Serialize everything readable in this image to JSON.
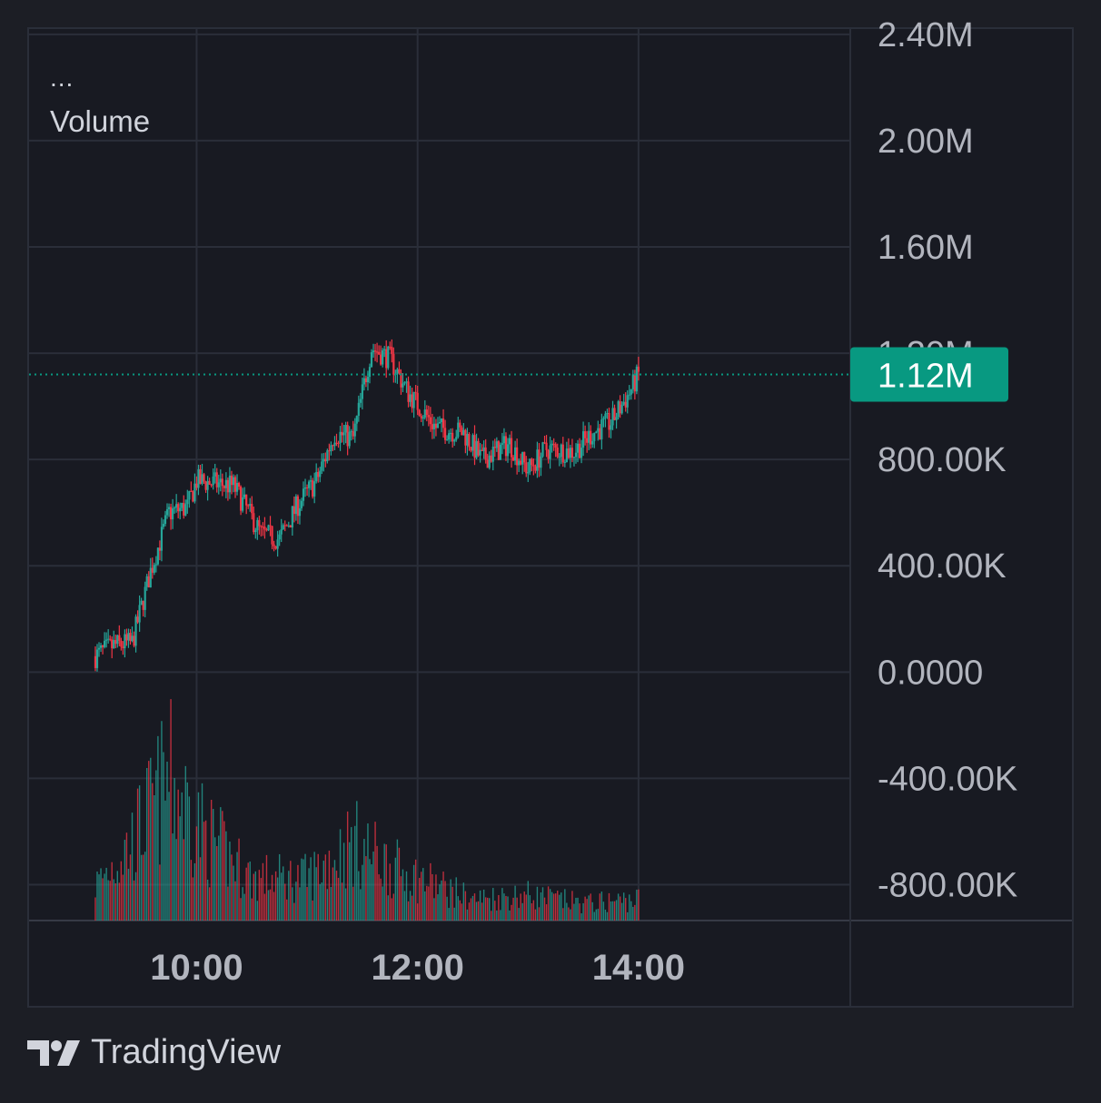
{
  "legend": {
    "dots": "...",
    "title": "Volume"
  },
  "brand": {
    "name": "TradingView",
    "logo_icon": "tradingview-logo-icon"
  },
  "price_label": {
    "text": "1.12M",
    "value": 1120000,
    "color": "#089981"
  },
  "colors": {
    "up": "#26a69a",
    "down": "#f23645",
    "grid": "#2a2e39",
    "axis_text": "#b2b5be",
    "background": "#181a22"
  },
  "chart_data": {
    "type": "candlestick",
    "title": "",
    "series_name": "Volume",
    "x_ticks": [
      "10:00",
      "12:00",
      "14:00"
    ],
    "x_time_range": [
      "08:29",
      "15:55"
    ],
    "y_ticks": [
      "2.40M",
      "2.00M",
      "1.60M",
      "1.20M",
      "800.00K",
      "400.00K",
      "0.0000",
      "-400.00K",
      "-800.00K"
    ],
    "y_tick_values": [
      2400000,
      2000000,
      1600000,
      1200000,
      800000,
      400000,
      0,
      -400000,
      -800000
    ],
    "ylim": [
      -935000,
      2420000
    ],
    "last_value": 1120000,
    "grid": true,
    "anchors": [
      {
        "t": "09:05",
        "v": 60000
      },
      {
        "t": "09:15",
        "v": 100000
      },
      {
        "t": "09:25",
        "v": 110000
      },
      {
        "t": "09:35",
        "v": 380000
      },
      {
        "t": "09:45",
        "v": 600000
      },
      {
        "t": "09:55",
        "v": 620000
      },
      {
        "t": "10:00",
        "v": 720000
      },
      {
        "t": "10:20",
        "v": 700000
      },
      {
        "t": "10:35",
        "v": 520000
      },
      {
        "t": "10:45",
        "v": 500000
      },
      {
        "t": "10:55",
        "v": 630000
      },
      {
        "t": "11:05",
        "v": 720000
      },
      {
        "t": "11:15",
        "v": 900000
      },
      {
        "t": "11:25",
        "v": 880000
      },
      {
        "t": "11:35",
        "v": 1220000
      },
      {
        "t": "11:45",
        "v": 1180000
      },
      {
        "t": "11:55",
        "v": 1050000
      },
      {
        "t": "12:10",
        "v": 920000
      },
      {
        "t": "12:25",
        "v": 900000
      },
      {
        "t": "12:35",
        "v": 800000
      },
      {
        "t": "12:50",
        "v": 860000
      },
      {
        "t": "13:00",
        "v": 760000
      },
      {
        "t": "13:10",
        "v": 840000
      },
      {
        "t": "13:25",
        "v": 830000
      },
      {
        "t": "13:35",
        "v": 900000
      },
      {
        "t": "13:45",
        "v": 940000
      },
      {
        "t": "13:55",
        "v": 1050000
      },
      {
        "t": "14:00",
        "v": 1120000
      }
    ],
    "volume_profile": [
      {
        "t": "09:05",
        "v": 0.25
      },
      {
        "t": "09:25",
        "v": 0.55
      },
      {
        "t": "09:45",
        "v": 1.0
      },
      {
        "t": "10:05",
        "v": 0.6
      },
      {
        "t": "10:30",
        "v": 0.3
      },
      {
        "t": "11:00",
        "v": 0.3
      },
      {
        "t": "11:25",
        "v": 0.55
      },
      {
        "t": "11:50",
        "v": 0.35
      },
      {
        "t": "12:30",
        "v": 0.15
      },
      {
        "t": "13:00",
        "v": 0.18
      },
      {
        "t": "13:30",
        "v": 0.12
      },
      {
        "t": "14:00",
        "v": 0.15
      }
    ]
  }
}
